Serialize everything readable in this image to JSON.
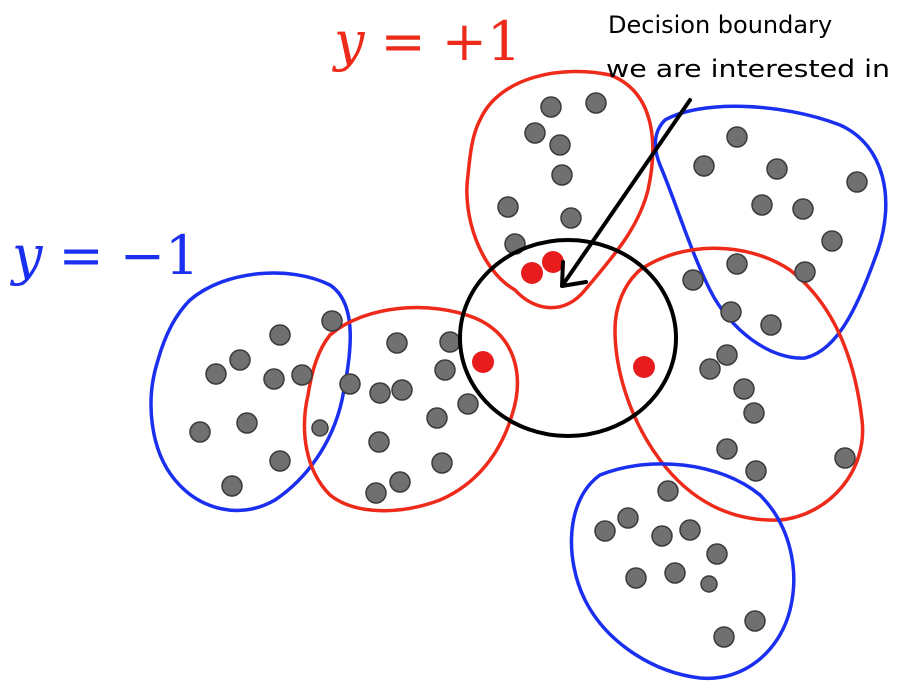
{
  "labels": {
    "positive_class": {
      "var": "y",
      "rel": "=",
      "value": "+1"
    },
    "negative_class": {
      "var": "y",
      "rel": "=",
      "value": "−1"
    },
    "annotation_line1": "Decision boundary",
    "annotation_line2": "we are interested in"
  },
  "colors": {
    "positive": "#ee2a1a",
    "negative": "#1b2ff0",
    "boundary": "#000000",
    "point": "#707070",
    "point_edge": "#3a3a3a",
    "highlight_point": "#e81c1c"
  },
  "clusters": [
    {
      "id": "top-red-cluster",
      "class": "positive"
    },
    {
      "id": "upper-right-blue-cluster",
      "class": "negative"
    },
    {
      "id": "right-red-cluster",
      "class": "positive"
    },
    {
      "id": "bottom-blue-cluster",
      "class": "negative"
    },
    {
      "id": "left-blue-cluster",
      "class": "negative"
    },
    {
      "id": "middle-left-red-cluster",
      "class": "positive"
    }
  ],
  "highlighted_point_count": 4
}
